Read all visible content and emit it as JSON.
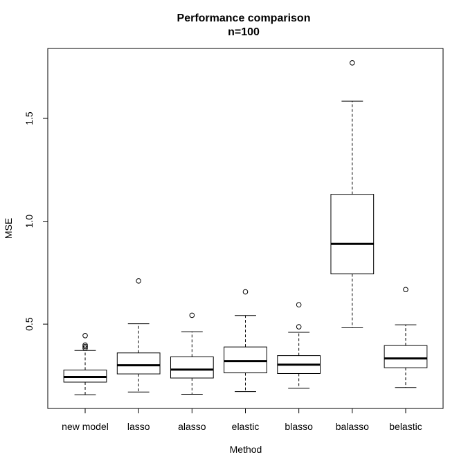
{
  "chart_data": {
    "type": "boxplot",
    "title": "Performance comparison",
    "subtitle": "n=100",
    "xlabel": "Method",
    "ylabel": "MSE",
    "ylim": [
      0.09,
      1.84
    ],
    "yticks": [
      0.5,
      1.0,
      1.5
    ],
    "ytick_labels": [
      "0.5",
      "1.0",
      "1.5"
    ],
    "grid": false,
    "legend": "none",
    "categories": [
      "new model",
      "lasso",
      "alasso",
      "elastic",
      "blasso",
      "balasso",
      "belastic"
    ],
    "boxes": [
      {
        "name": "new model",
        "whisker_low": 0.157,
        "q1": 0.218,
        "median": 0.243,
        "q3": 0.277,
        "whisker_high": 0.372,
        "outliers": [
          0.383,
          0.391,
          0.398,
          0.444
        ]
      },
      {
        "name": "lasso",
        "whisker_low": 0.17,
        "q1": 0.258,
        "median": 0.3,
        "q3": 0.36,
        "whisker_high": 0.502,
        "outliers": [
          0.71
        ]
      },
      {
        "name": "alasso",
        "whisker_low": 0.159,
        "q1": 0.238,
        "median": 0.279,
        "q3": 0.341,
        "whisker_high": 0.463,
        "outliers": [
          0.543
        ]
      },
      {
        "name": "elastic",
        "whisker_low": 0.172,
        "q1": 0.263,
        "median": 0.32,
        "q3": 0.389,
        "whisker_high": 0.542,
        "outliers": [
          0.657
        ]
      },
      {
        "name": "blasso",
        "whisker_low": 0.188,
        "q1": 0.26,
        "median": 0.303,
        "q3": 0.347,
        "whisker_high": 0.46,
        "outliers": [
          0.487,
          0.594
        ]
      },
      {
        "name": "balasso",
        "whisker_low": 0.482,
        "q1": 0.744,
        "median": 0.89,
        "q3": 1.131,
        "whisker_high": 1.584,
        "outliers": [
          1.77
        ]
      },
      {
        "name": "belastic",
        "whisker_low": 0.192,
        "q1": 0.288,
        "median": 0.333,
        "q3": 0.396,
        "whisker_high": 0.497,
        "outliers": [
          0.668
        ]
      }
    ]
  }
}
